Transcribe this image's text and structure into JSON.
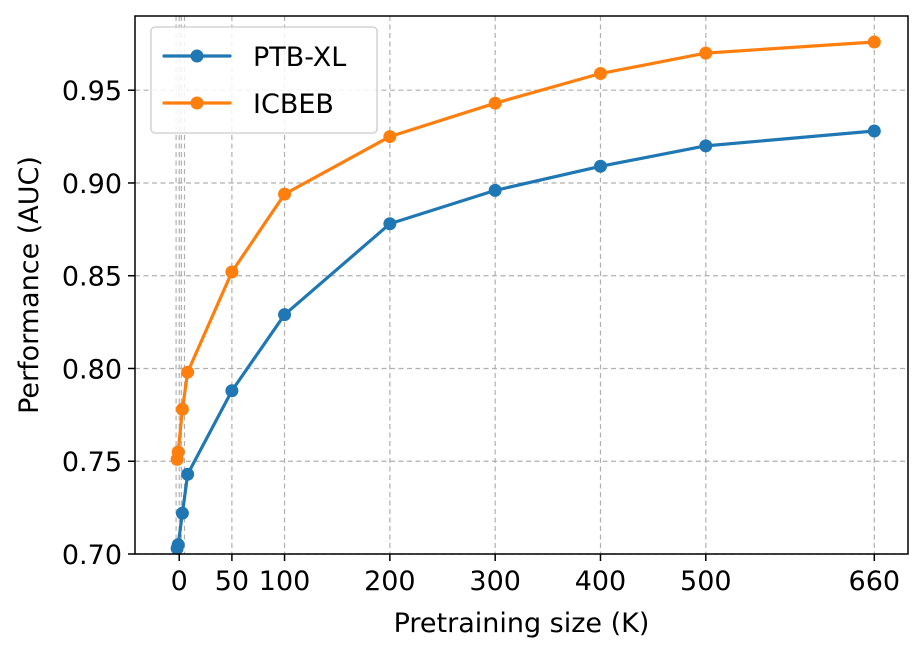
{
  "chart_data": {
    "type": "line",
    "title": "",
    "xlabel": "Pretraining size (K)",
    "ylabel": "Performance (AUC)",
    "xlim": [
      -42,
      692
    ],
    "ylim": [
      0.7,
      0.99
    ],
    "grid": true,
    "legend_position": "top-left",
    "x_ticks": [
      {
        "value": 0,
        "label": "0"
      },
      {
        "value": 50,
        "label": "50"
      },
      {
        "value": 100,
        "label": "100"
      },
      {
        "value": 200,
        "label": "200"
      },
      {
        "value": 300,
        "label": "300"
      },
      {
        "value": 400,
        "label": "400"
      },
      {
        "value": 500,
        "label": "500"
      },
      {
        "value": 660,
        "label": "660"
      }
    ],
    "extra_gridlines_x": [
      -3,
      2,
      5
    ],
    "y_ticks": [
      {
        "value": 0.7,
        "label": "0.70"
      },
      {
        "value": 0.75,
        "label": "0.75"
      },
      {
        "value": 0.8,
        "label": "0.80"
      },
      {
        "value": 0.85,
        "label": "0.85"
      },
      {
        "value": 0.9,
        "label": "0.90"
      },
      {
        "value": 0.95,
        "label": "0.95"
      }
    ],
    "series": [
      {
        "name": "PTB-XL",
        "color": "#1f77b4",
        "x": [
          -2,
          -1,
          3,
          8,
          50,
          100,
          200,
          300,
          400,
          500,
          660
        ],
        "y": [
          0.703,
          0.705,
          0.722,
          0.743,
          0.788,
          0.829,
          0.878,
          0.896,
          0.909,
          0.92,
          0.928
        ]
      },
      {
        "name": "ICBEB",
        "color": "#ff7f0e",
        "x": [
          -2,
          -1,
          3,
          8,
          50,
          100,
          200,
          300,
          400,
          500,
          660
        ],
        "y": [
          0.751,
          0.755,
          0.778,
          0.798,
          0.852,
          0.894,
          0.925,
          0.943,
          0.959,
          0.97,
          0.976
        ]
      }
    ]
  }
}
